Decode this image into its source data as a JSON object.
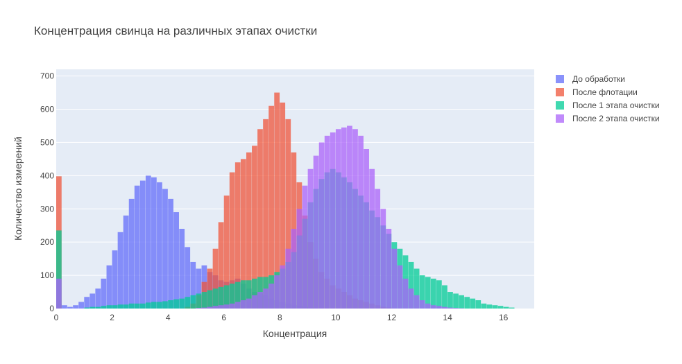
{
  "chart_data": {
    "type": "bar",
    "subtype": "overlaid histogram",
    "title": "Концентрация свинца на различных этапах очистки",
    "xlabel": "Концентрация",
    "ylabel": "Количество измерений",
    "xlim": [
      0,
      17.1
    ],
    "ylim": [
      0,
      720
    ],
    "x_ticks": [
      "0",
      "2",
      "4",
      "6",
      "8",
      "10",
      "12",
      "14",
      "16"
    ],
    "y_ticks": [
      "0",
      "100",
      "200",
      "300",
      "400",
      "500",
      "600",
      "700"
    ],
    "grid": true,
    "legend_position": "top-right",
    "barmode": "overlay",
    "opacity": 0.75,
    "series": [
      {
        "name": "До обработки",
        "color": "#636efa",
        "x": [
          0.1,
          0.3,
          0.5,
          0.7,
          0.9,
          1.1,
          1.3,
          1.5,
          1.7,
          1.9,
          2.1,
          2.3,
          2.5,
          2.7,
          2.9,
          3.1,
          3.3,
          3.5,
          3.7,
          3.9,
          4.1,
          4.3,
          4.5,
          4.7,
          4.9,
          5.1,
          5.3,
          5.5,
          5.7,
          5.9,
          6.1,
          6.3,
          6.5,
          6.7,
          6.9,
          7.1,
          7.3,
          7.5,
          7.7,
          7.9,
          8.1,
          8.3,
          8.5,
          8.7,
          8.9,
          9.1,
          9.3
        ],
        "values": [
          15,
          10,
          5,
          10,
          20,
          35,
          45,
          60,
          90,
          130,
          175,
          230,
          280,
          330,
          370,
          385,
          400,
          395,
          380,
          360,
          330,
          290,
          240,
          185,
          140,
          120,
          130,
          110,
          100,
          85,
          80,
          85,
          90,
          75,
          60,
          50,
          45,
          40,
          30,
          25,
          20,
          15,
          10,
          8,
          5,
          3,
          2
        ]
      },
      {
        "name": "После флотации",
        "color": "#ef553b",
        "x": [
          0.1,
          0.3,
          0.5,
          0.7,
          0.9,
          1.1,
          1.3,
          1.5,
          1.7,
          1.9,
          2.1,
          2.3,
          2.5,
          2.7,
          2.9,
          3.1,
          3.3,
          3.5,
          3.7,
          3.9,
          4.1,
          4.3,
          4.5,
          4.7,
          4.9,
          5.1,
          5.3,
          5.5,
          5.7,
          5.9,
          6.1,
          6.3,
          6.5,
          6.7,
          6.9,
          7.1,
          7.3,
          7.5,
          7.7,
          7.9,
          8.1,
          8.3,
          8.5,
          8.7,
          8.9,
          9.1,
          9.3,
          9.5,
          9.7,
          9.9,
          10.1,
          10.3,
          10.5,
          10.7,
          10.9,
          11.1,
          11.3,
          11.5,
          11.7,
          11.9
        ],
        "values": [
          398,
          0,
          0,
          0,
          0,
          0,
          0,
          0,
          0,
          0,
          0,
          0,
          0,
          0,
          0,
          0,
          0,
          0,
          0,
          0,
          0,
          0,
          0,
          5,
          15,
          40,
          80,
          120,
          180,
          260,
          340,
          410,
          440,
          450,
          470,
          490,
          540,
          570,
          610,
          650,
          620,
          570,
          470,
          380,
          280,
          200,
          150,
          110,
          90,
          70,
          60,
          50,
          40,
          30,
          25,
          20,
          15,
          10,
          5,
          3
        ]
      },
      {
        "name": "После 1 этапа очистки",
        "color": "#00cc96",
        "x": [
          0.1,
          0.3,
          0.5,
          0.7,
          0.9,
          1.1,
          1.3,
          1.5,
          1.7,
          1.9,
          2.1,
          2.3,
          2.5,
          2.7,
          2.9,
          3.1,
          3.3,
          3.5,
          3.7,
          3.9,
          4.1,
          4.3,
          4.5,
          4.7,
          4.9,
          5.1,
          5.3,
          5.5,
          5.7,
          5.9,
          6.1,
          6.3,
          6.5,
          6.7,
          6.9,
          7.1,
          7.3,
          7.5,
          7.7,
          7.9,
          8.1,
          8.3,
          8.5,
          8.7,
          8.9,
          9.1,
          9.3,
          9.5,
          9.7,
          9.9,
          10.1,
          10.3,
          10.5,
          10.7,
          10.9,
          11.1,
          11.3,
          11.5,
          11.7,
          11.9,
          12.1,
          12.3,
          12.5,
          12.7,
          12.9,
          13.1,
          13.3,
          13.5,
          13.7,
          13.9,
          14.1,
          14.3,
          14.5,
          14.7,
          14.9,
          15.1,
          15.3,
          15.5,
          15.7,
          15.9,
          16.1,
          16.3
        ],
        "values": [
          235,
          0,
          0,
          0,
          0,
          3,
          5,
          5,
          8,
          10,
          10,
          12,
          12,
          15,
          15,
          15,
          18,
          20,
          20,
          22,
          25,
          28,
          30,
          35,
          40,
          45,
          50,
          55,
          60,
          65,
          70,
          75,
          80,
          85,
          85,
          90,
          95,
          95,
          100,
          110,
          120,
          140,
          170,
          220,
          270,
          320,
          360,
          390,
          410,
          420,
          410,
          395,
          380,
          360,
          340,
          320,
          295,
          275,
          250,
          225,
          200,
          180,
          160,
          140,
          120,
          100,
          95,
          90,
          85,
          70,
          50,
          45,
          40,
          35,
          30,
          25,
          15,
          12,
          10,
          8,
          5,
          3
        ]
      },
      {
        "name": "После 2 этапа очистки",
        "color": "#ab63fa",
        "x": [
          0.1,
          0.3,
          0.5,
          0.7,
          0.9,
          1.1,
          1.3,
          1.5,
          1.7,
          1.9,
          2.1,
          2.3,
          2.5,
          2.7,
          2.9,
          3.1,
          3.3,
          3.5,
          3.7,
          3.9,
          4.1,
          4.3,
          4.5,
          4.7,
          4.9,
          5.1,
          5.3,
          5.5,
          5.7,
          5.9,
          6.1,
          6.3,
          6.5,
          6.7,
          6.9,
          7.1,
          7.3,
          7.5,
          7.7,
          7.9,
          8.1,
          8.3,
          8.5,
          8.7,
          8.9,
          9.1,
          9.3,
          9.5,
          9.7,
          9.9,
          10.1,
          10.3,
          10.5,
          10.7,
          10.9,
          11.1,
          11.3,
          11.5,
          11.7,
          11.9,
          12.1,
          12.3,
          12.5,
          12.7,
          12.9,
          13.1,
          13.3,
          13.5,
          13.7,
          13.9,
          14.1,
          14.3,
          14.5,
          14.7,
          14.9
        ],
        "values": [
          90,
          0,
          0,
          0,
          0,
          0,
          0,
          0,
          0,
          0,
          0,
          0,
          0,
          0,
          0,
          0,
          0,
          0,
          0,
          0,
          0,
          0,
          0,
          0,
          0,
          2,
          3,
          5,
          8,
          10,
          12,
          15,
          20,
          25,
          30,
          40,
          50,
          60,
          75,
          100,
          130,
          180,
          240,
          300,
          370,
          420,
          460,
          500,
          520,
          530,
          540,
          545,
          550,
          540,
          520,
          480,
          420,
          360,
          300,
          240,
          180,
          130,
          90,
          60,
          40,
          25,
          15,
          10,
          8,
          5,
          3,
          2,
          1,
          0,
          0
        ]
      }
    ]
  }
}
